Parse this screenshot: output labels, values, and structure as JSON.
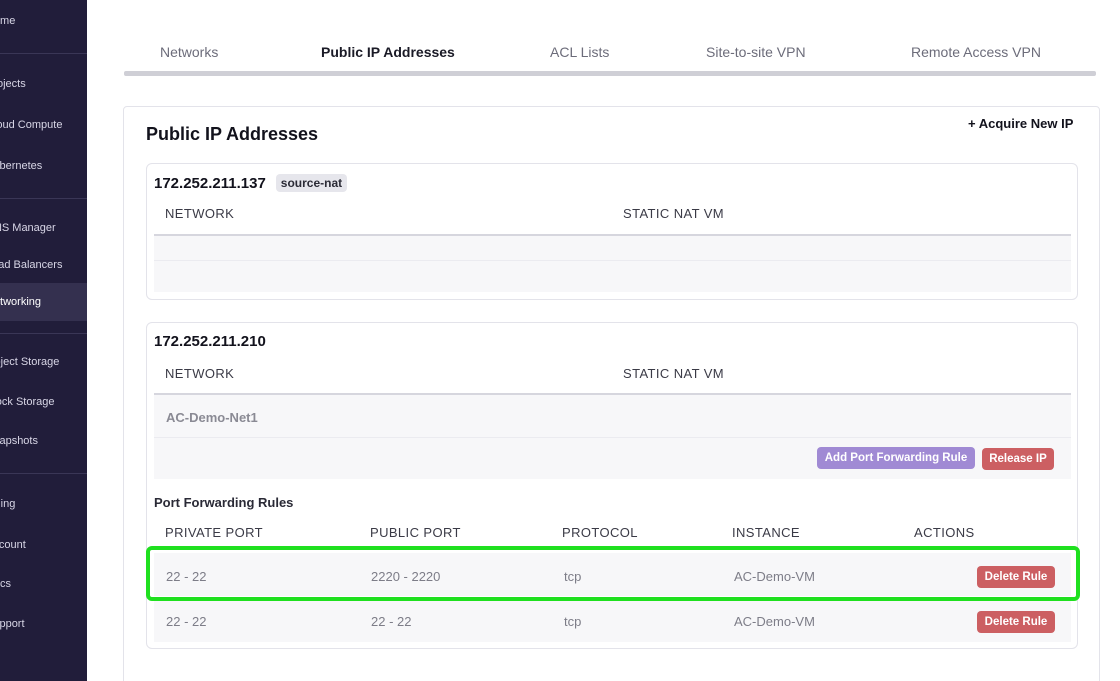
{
  "sidebar": {
    "items": [
      {
        "label": "Home"
      },
      {
        "label": "Projects"
      },
      {
        "label": "Cloud Compute"
      },
      {
        "label": "Kubernetes"
      },
      {
        "label": "DNS Manager"
      },
      {
        "label": "Load Balancers"
      },
      {
        "label": "Networking"
      },
      {
        "label": "Object Storage"
      },
      {
        "label": "Block Storage"
      },
      {
        "label": "Snapshots"
      },
      {
        "label": "Billing"
      },
      {
        "label": "Account"
      },
      {
        "label": "Docs"
      },
      {
        "label": "Support"
      }
    ],
    "active": "Networking"
  },
  "tabs": [
    {
      "label": "Networks"
    },
    {
      "label": "Public IP Addresses"
    },
    {
      "label": "ACL Lists"
    },
    {
      "label": "Site-to-site VPN"
    },
    {
      "label": "Remote Access VPN"
    }
  ],
  "main": {
    "title": "Public IP Addresses",
    "acquire_label": "+ Acquire New IP"
  },
  "ip1": {
    "address": "172.252.211.137",
    "badge": "source-nat",
    "col_network": "NETWORK",
    "col_static_nat": "STATIC NAT VM"
  },
  "ip2": {
    "address": "172.252.211.210",
    "col_network": "NETWORK",
    "col_static_nat": "STATIC NAT VM",
    "network_value": "AC-Demo-Net1",
    "add_pf_label": "Add Port Forwarding Rule",
    "release_label": "Release IP",
    "pf_title": "Port Forwarding Rules",
    "pf_columns": [
      "PRIVATE PORT",
      "PUBLIC PORT",
      "PROTOCOL",
      "INSTANCE",
      "ACTIONS"
    ],
    "pf_rows": [
      {
        "private_port": "22 - 22",
        "public_port": "2220 - 2220",
        "protocol": "tcp",
        "instance": "AC-Demo-VM",
        "action": "Delete Rule"
      },
      {
        "private_port": "22 - 22",
        "public_port": "22 - 22",
        "protocol": "tcp",
        "instance": "AC-Demo-VM",
        "action": "Delete Rule"
      }
    ]
  },
  "colors": {
    "sidebar_bg": "#211d3a",
    "highlight": "#1fe01f",
    "danger": "#cc5f62",
    "purple": "#a08ad4"
  }
}
